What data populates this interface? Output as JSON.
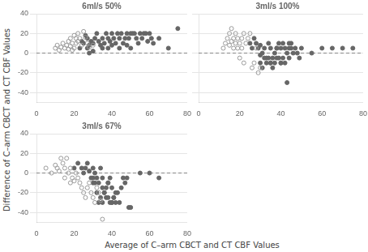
{
  "xlabel": "Average of C–arm CBCT and CT CBF Values",
  "ylabel": "Difference of C–arm CBCT and CT CBF Values",
  "chart_data": [
    {
      "type": "scatter",
      "title": "6ml/s 50%",
      "xlim": [
        0,
        80
      ],
      "ylim": [
        -50,
        40
      ],
      "xticks": [
        0,
        20,
        40,
        60,
        80
      ],
      "yticks": [
        -40,
        -20,
        0,
        20,
        40
      ],
      "grid": "y",
      "hline": 0,
      "series": [
        {
          "color": "#999999",
          "marker": "open_circle",
          "x": [
            10,
            11,
            12,
            13,
            14,
            15,
            16,
            17,
            17,
            18,
            18,
            19,
            19,
            20,
            20,
            21,
            21,
            22,
            22,
            23,
            24,
            25,
            26,
            27,
            28,
            30
          ],
          "values": [
            5,
            8,
            3,
            6,
            10,
            5,
            8,
            12,
            4,
            15,
            7,
            3,
            10,
            18,
            5,
            10,
            15,
            20,
            12,
            15,
            8,
            22,
            16,
            10,
            6,
            8
          ]
        },
        {
          "color": "#666666",
          "marker": "circle",
          "x": [
            23,
            24,
            25,
            26,
            27,
            27,
            28,
            28,
            29,
            30,
            30,
            31,
            32,
            33,
            34,
            35,
            35,
            36,
            37,
            38,
            38,
            39,
            40,
            40,
            41,
            42,
            43,
            44,
            44,
            45,
            46,
            47,
            48,
            48,
            49,
            50,
            50,
            51,
            52,
            53,
            54,
            55,
            56,
            57,
            58,
            59,
            60,
            61,
            62,
            65,
            70,
            75
          ],
          "values": [
            5,
            12,
            10,
            18,
            15,
            5,
            8,
            0,
            12,
            10,
            2,
            15,
            20,
            12,
            8,
            5,
            15,
            10,
            20,
            15,
            5,
            12,
            8,
            20,
            15,
            10,
            20,
            15,
            5,
            20,
            10,
            15,
            20,
            8,
            15,
            20,
            5,
            20,
            20,
            15,
            10,
            20,
            15,
            20,
            20,
            12,
            20,
            15,
            10,
            15,
            5,
            25
          ]
        }
      ]
    },
    {
      "type": "scatter",
      "title": "3ml/s 100%",
      "xlim": [
        0,
        80
      ],
      "ylim": [
        -50,
        40
      ],
      "xticks": [
        0,
        20,
        40,
        60,
        80
      ],
      "yticks": [
        -40,
        -20,
        0,
        20,
        40
      ],
      "grid": "y",
      "hline": 0,
      "tick_labels": "x",
      "series": [
        {
          "color": "#999999",
          "marker": "open_circle",
          "x": [
            12,
            13,
            14,
            15,
            15,
            16,
            16,
            17,
            17,
            18,
            18,
            19,
            19,
            20,
            20,
            21,
            21,
            22,
            22,
            23,
            24,
            25,
            26,
            27,
            28,
            29,
            30
          ],
          "values": [
            5,
            10,
            15,
            20,
            8,
            25,
            12,
            15,
            5,
            20,
            10,
            15,
            5,
            10,
            -5,
            5,
            15,
            20,
            -10,
            10,
            15,
            20,
            -15,
            -10,
            5,
            -20,
            -15
          ]
        },
        {
          "color": "#666666",
          "marker": "circle",
          "x": [
            25,
            26,
            27,
            28,
            29,
            30,
            30,
            31,
            32,
            33,
            34,
            35,
            35,
            36,
            37,
            38,
            38,
            39,
            40,
            40,
            41,
            42,
            43,
            44,
            44,
            45,
            46,
            47,
            48,
            49,
            50,
            55,
            60,
            65,
            70,
            75,
            30,
            31,
            32,
            33,
            34,
            35,
            36,
            37,
            38,
            39,
            40,
            41,
            42,
            43,
            44,
            45
          ],
          "values": [
            10,
            5,
            15,
            10,
            5,
            8,
            -2,
            0,
            5,
            -5,
            10,
            5,
            -10,
            -5,
            0,
            5,
            -5,
            10,
            5,
            -10,
            10,
            5,
            0,
            10,
            -5,
            5,
            0,
            5,
            0,
            -5,
            5,
            0,
            5,
            5,
            5,
            5,
            -10,
            -15,
            -5,
            -10,
            -5,
            -10,
            -15,
            -10,
            5,
            -5,
            -10,
            -5,
            -10,
            -30,
            5,
            10
          ]
        }
      ]
    },
    {
      "type": "scatter",
      "title": "3ml/s 67%",
      "xlim": [
        0,
        80
      ],
      "ylim": [
        -50,
        40
      ],
      "xticks": [
        0,
        20,
        40,
        60,
        80
      ],
      "yticks": [
        -40,
        -20,
        0,
        20,
        40
      ],
      "grid": "y",
      "hline": 0,
      "series": [
        {
          "color": "#999999",
          "marker": "open_circle",
          "x": [
            5,
            8,
            10,
            11,
            12,
            13,
            14,
            15,
            15,
            16,
            17,
            18,
            18,
            19,
            20,
            21,
            22,
            23,
            24,
            25,
            26,
            27,
            28,
            29,
            30,
            31,
            32,
            33,
            34,
            35
          ],
          "values": [
            5,
            0,
            8,
            5,
            2,
            15,
            10,
            5,
            -5,
            15,
            0,
            5,
            -10,
            -5,
            -8,
            0,
            -5,
            -10,
            -15,
            -20,
            -25,
            -15,
            -10,
            -20,
            -25,
            -30,
            -15,
            -20,
            -28,
            -47
          ]
        },
        {
          "color": "#666666",
          "marker": "circle",
          "x": [
            20,
            22,
            24,
            25,
            26,
            27,
            28,
            29,
            30,
            30,
            31,
            32,
            33,
            34,
            35,
            35,
            36,
            37,
            38,
            38,
            39,
            40,
            40,
            41,
            42,
            43,
            44,
            45,
            46,
            47,
            48,
            49,
            50,
            55,
            60,
            65,
            30,
            31,
            32,
            33,
            34,
            35,
            36,
            37,
            38,
            39,
            40,
            41,
            42
          ],
          "values": [
            5,
            10,
            5,
            0,
            5,
            10,
            2,
            -5,
            5,
            -10,
            0,
            -5,
            -10,
            5,
            -15,
            -5,
            -20,
            -25,
            -25,
            -10,
            -30,
            -30,
            -15,
            -25,
            -30,
            -20,
            -30,
            -15,
            -5,
            -10,
            -5,
            -35,
            -35,
            0,
            0,
            -5,
            -5,
            -10,
            -20,
            -30,
            -25,
            -30,
            -20,
            -15,
            -10,
            -5,
            -30,
            -25,
            -20
          ]
        }
      ]
    }
  ]
}
